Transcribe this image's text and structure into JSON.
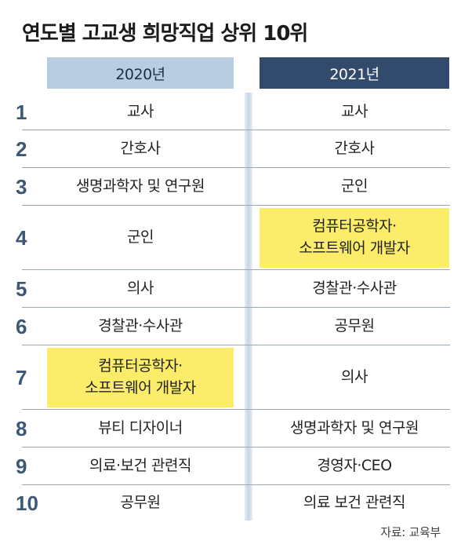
{
  "title": "연도별 고교생 희망직업 상위 10위",
  "headers": {
    "year_2020": "2020년",
    "year_2021": "2021년"
  },
  "highlight_color": "#fbec6a",
  "rows": [
    {
      "rank": "1",
      "y2020": "교사",
      "y2021": "교사"
    },
    {
      "rank": "2",
      "y2020": "간호사",
      "y2021": "간호사"
    },
    {
      "rank": "3",
      "y2020": "생명과학자 및 연구원",
      "y2021": "군인"
    },
    {
      "rank": "4",
      "y2020": "군인",
      "y2021": "컴퓨터공학자·\n소프트웨어 개발자",
      "highlight_2021": true
    },
    {
      "rank": "5",
      "y2020": "의사",
      "y2021": "경찰관·수사관"
    },
    {
      "rank": "6",
      "y2020": "경찰관·수사관",
      "y2021": "공무원"
    },
    {
      "rank": "7",
      "y2020": "컴퓨터공학자·\n소프트웨어 개발자",
      "y2021": "의사",
      "highlight_2020": true
    },
    {
      "rank": "8",
      "y2020": "뷰티 디자이너",
      "y2021": "생명과학자 및 연구원"
    },
    {
      "rank": "9",
      "y2020": "의료·보건 관련직",
      "y2021": "경영자·CEO"
    },
    {
      "rank": "10",
      "y2020": "공무원",
      "y2021": "의료 보건 관련직"
    }
  ],
  "source": "자료: 교육부"
}
